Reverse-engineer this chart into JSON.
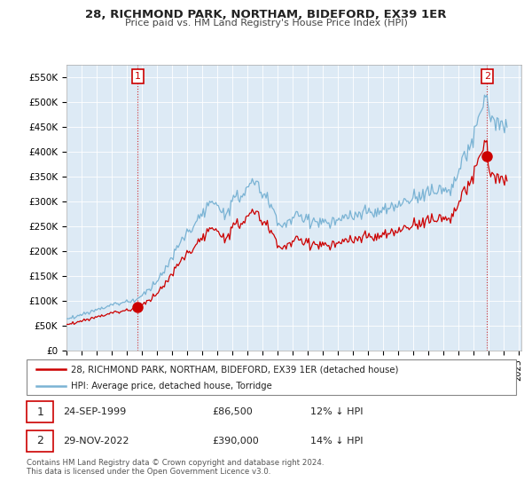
{
  "title": "28, RICHMOND PARK, NORTHAM, BIDEFORD, EX39 1ER",
  "subtitle": "Price paid vs. HM Land Registry's House Price Index (HPI)",
  "xlim_start": 1995.0,
  "xlim_end": 2025.2,
  "ylim": [
    0,
    575000
  ],
  "yticks": [
    0,
    50000,
    100000,
    150000,
    200000,
    250000,
    300000,
    350000,
    400000,
    450000,
    500000,
    550000
  ],
  "ytick_labels": [
    "£0",
    "£50K",
    "£100K",
    "£150K",
    "£200K",
    "£250K",
    "£300K",
    "£350K",
    "£400K",
    "£450K",
    "£500K",
    "£550K"
  ],
  "hpi_color": "#7ab3d4",
  "price_color": "#cc0000",
  "vline_color": "#cc0000",
  "bg_color": "#ffffff",
  "plot_bg_color": "#ddeaf5",
  "grid_color": "#ffffff",
  "legend_label_price": "28, RICHMOND PARK, NORTHAM, BIDEFORD, EX39 1ER (detached house)",
  "legend_label_hpi": "HPI: Average price, detached house, Torridge",
  "sale1_date": "24-SEP-1999",
  "sale1_price": "£86,500",
  "sale1_hpi": "12% ↓ HPI",
  "sale1_x": 1999.73,
  "sale1_y": 86500,
  "sale2_date": "29-NOV-2022",
  "sale2_price": "£390,000",
  "sale2_hpi": "14% ↓ HPI",
  "sale2_x": 2022.92,
  "sale2_y": 390000,
  "footnote": "Contains HM Land Registry data © Crown copyright and database right 2024.\nThis data is licensed under the Open Government Licence v3.0."
}
